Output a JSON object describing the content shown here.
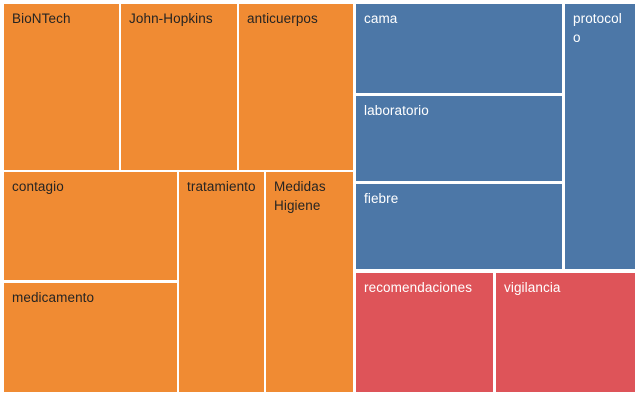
{
  "chart_data": {
    "type": "treemap",
    "title": "",
    "legend": "none",
    "layout": {
      "background": "#ffffff",
      "gap_color": "#ffffff",
      "label_position": "top-left"
    },
    "palette": {
      "orange": "#f08b33",
      "blue": "#4c77a7",
      "red": "#de5459"
    },
    "text_colors": {
      "orange": "#252423",
      "blue": "#ffffff",
      "red": "#ffffff"
    },
    "tiles": [
      {
        "label": "BioNTech",
        "group": "orange",
        "size_pct": 7.8
      },
      {
        "label": "John-Hopkins",
        "group": "orange",
        "size_pct": 7.9
      },
      {
        "label": "anticuerpos",
        "group": "orange",
        "size_pct": 7.8
      },
      {
        "label": "contagio",
        "group": "orange",
        "size_pct": 7.7
      },
      {
        "label": "medicamento",
        "group": "orange",
        "size_pct": 7.8
      },
      {
        "label": "tratamiento",
        "group": "orange",
        "size_pct": 7.7
      },
      {
        "label": "Medidas Higiene",
        "group": "orange",
        "size_pct": 7.8
      },
      {
        "label": "cama",
        "group": "blue",
        "size_pct": 7.6
      },
      {
        "label": "laboratorio",
        "group": "blue",
        "size_pct": 7.2
      },
      {
        "label": "fiebre",
        "group": "blue",
        "size_pct": 7.2
      },
      {
        "label": "protocolo",
        "group": "blue",
        "size_pct": 7.6
      },
      {
        "label": "recomendaciones",
        "group": "red",
        "size_pct": 6.7
      },
      {
        "label": "vigilancia",
        "group": "red",
        "size_pct": 6.8
      }
    ]
  }
}
